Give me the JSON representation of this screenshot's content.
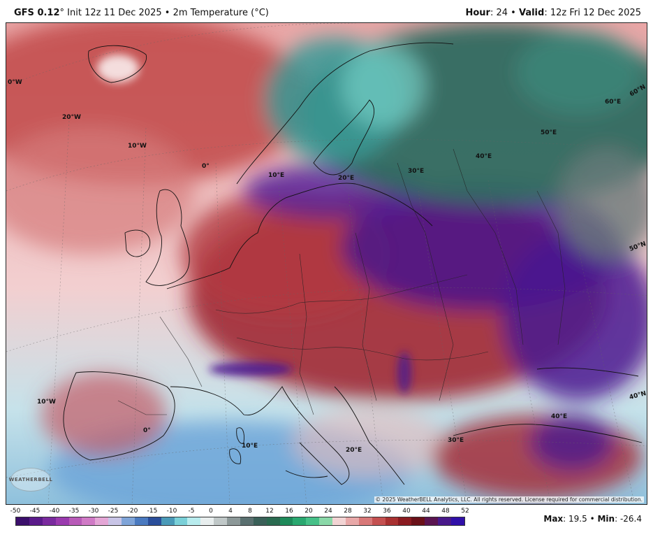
{
  "header": {
    "model": "GFS 0.12",
    "degree": "°",
    "init": "Init 12z 11 Dec 2025",
    "sep": "•",
    "product": "2m Temperature (°C)",
    "hour_label": "Hour",
    "hour_value": ": 24",
    "valid_label": "Valid",
    "valid_value": ": 12z Fri 12 Dec 2025"
  },
  "map_labels": {
    "lon_0w_top": "0°W",
    "lon_20w": "20°W",
    "lon_10w_top": "10°W",
    "lon_0_mid": "0°",
    "lon_10e_mid": "10°E",
    "lon_20e_mid": "20°E",
    "lon_30e_mid": "30°E",
    "lon_40e_mid": "40°E",
    "lon_50e_mid": "50°E",
    "lon_60e": "60°E",
    "lat_60n": "60°N",
    "lat_50n": "50°N",
    "lat_40n": "40°N",
    "lon_10w_bot": "10°W",
    "lon_0_bot": "0°",
    "lon_10e_bot": "10°E",
    "lon_20e_bot": "20°E",
    "lon_30e_bot": "30°E",
    "lon_40e_bot": "40°E"
  },
  "logo": "WEATHERBELL",
  "copyright": "© 2025 WeatherBELL Analytics, LLC. All rights reserved. License required for commercial distribution.",
  "colorbar": {
    "ticks": [
      "-50",
      "-45",
      "-40",
      "-35",
      "-30",
      "-25",
      "-20",
      "-15",
      "-10",
      "-5",
      "0",
      "4",
      "8",
      "12",
      "16",
      "20",
      "24",
      "28",
      "32",
      "36",
      "40",
      "44",
      "48",
      "52"
    ],
    "colors": [
      "#3b0f6b",
      "#5a1a8a",
      "#7a2a9e",
      "#9a3aae",
      "#b85ab8",
      "#d07ac6",
      "#e4a6d6",
      "#c8c4e6",
      "#7fa4d8",
      "#4a7ac0",
      "#2a4e9a",
      "#4a9ab8",
      "#7ad0d8",
      "#b8ecee",
      "#e8eeee",
      "#c0c8c8",
      "#8c9898",
      "#5a7070",
      "#3a6058",
      "#2a6a50",
      "#1e8a5a",
      "#2aa870",
      "#46c088",
      "#8ad8a8",
      "#f2d4d4",
      "#e8a8a8",
      "#d87878",
      "#c45050",
      "#a83030",
      "#8a1a20",
      "#6a1018",
      "#5a1450",
      "#48188a",
      "#3010a8"
    ]
  },
  "stats": {
    "max_label": "Max",
    "max_value": ": 19.5",
    "sep": "•",
    "min_label": "Min",
    "min_value": ": -26.4"
  }
}
